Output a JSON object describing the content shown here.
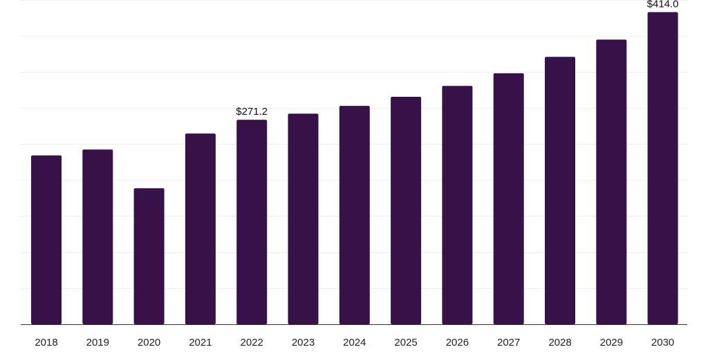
{
  "chart_data": {
    "type": "bar",
    "title": "",
    "xlabel": "",
    "ylabel": "",
    "categories": [
      "2018",
      "2019",
      "2020",
      "2021",
      "2022",
      "2023",
      "2024",
      "2025",
      "2026",
      "2027",
      "2028",
      "2029",
      "2030"
    ],
    "values": [
      224.0,
      231.7,
      180.4,
      253.0,
      271.2,
      279.3,
      289.6,
      301.6,
      316.0,
      332.8,
      354.5,
      377.5,
      414.0
    ],
    "data_labels": [
      {
        "category": "2022",
        "text": "$271.2"
      },
      {
        "category": "2030",
        "text": "$414.0"
      }
    ],
    "ylim": [
      0,
      430
    ],
    "grid": true,
    "legend": "none",
    "bar_color": "#361249"
  }
}
